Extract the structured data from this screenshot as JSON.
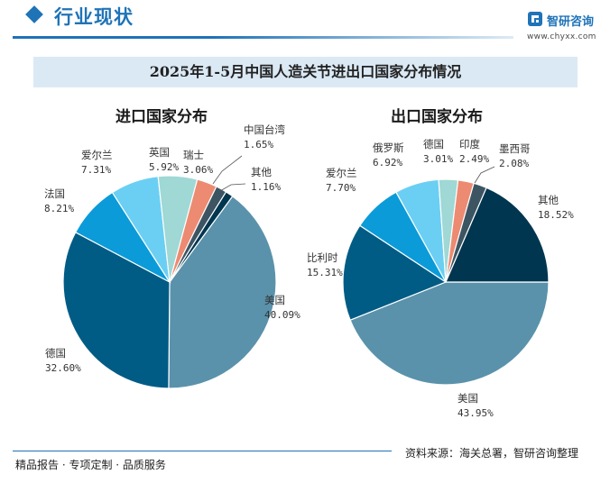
{
  "header": {
    "title": "行业现状",
    "brand_name": "智研咨询",
    "brand_url": "www.chyxx.com"
  },
  "chart_data": [
    {
      "type": "pie",
      "title": "2025年1-5月中国人造关节进出口国家分布情况",
      "subtitle": "进口国家分布",
      "unit": "%",
      "slices": [
        {
          "name": "美国",
          "label": "美国",
          "value": 40.09,
          "pct": "40.09%",
          "color": "#5a92ab"
        },
        {
          "name": "德国",
          "label": "德国",
          "value": 32.6,
          "pct": "32.60%",
          "color": "#005c85"
        },
        {
          "name": "法国",
          "label": "法国",
          "value": 8.21,
          "pct": "8.21%",
          "color": "#0b9bd8"
        },
        {
          "name": "爱尔兰",
          "label": "爱尔兰",
          "value": 7.31,
          "pct": "7.31%",
          "color": "#6bcff3"
        },
        {
          "name": "英国",
          "label": "英国",
          "value": 5.92,
          "pct": "5.92%",
          "color": "#9fd8d5"
        },
        {
          "name": "瑞士",
          "label": "瑞士",
          "value": 3.06,
          "pct": "3.06%",
          "color": "#ec8b72"
        },
        {
          "name": "中国台湾",
          "label": "中国台湾",
          "value": 1.65,
          "pct": "1.65%",
          "color": "#3d5563"
        },
        {
          "name": "其他",
          "label": "其他",
          "value": 1.16,
          "pct": "1.16%",
          "color": "#00364f"
        }
      ]
    },
    {
      "type": "pie",
      "subtitle": "出口国家分布",
      "unit": "%",
      "slices": [
        {
          "name": "美国",
          "label": "美国",
          "value": 43.95,
          "pct": "43.95%",
          "color": "#5a92ab"
        },
        {
          "name": "比利时",
          "label": "比利时",
          "value": 15.31,
          "pct": "15.31%",
          "color": "#005c85"
        },
        {
          "name": "爱尔兰",
          "label": "爱尔兰",
          "value": 7.7,
          "pct": "7.70%",
          "color": "#0b9bd8"
        },
        {
          "name": "俄罗斯",
          "label": "俄罗斯",
          "value": 6.92,
          "pct": "6.92%",
          "color": "#6bcff3"
        },
        {
          "name": "德国",
          "label": "德国",
          "value": 3.01,
          "pct": "3.01%",
          "color": "#9fd8d5"
        },
        {
          "name": "印度",
          "label": "印度",
          "value": 2.49,
          "pct": "2.49%",
          "color": "#ec8b72"
        },
        {
          "name": "墨西哥",
          "label": "墨西哥",
          "value": 2.08,
          "pct": "2.08%",
          "color": "#3d5563"
        },
        {
          "name": "其他",
          "label": "其他",
          "value": 18.52,
          "pct": "18.52%",
          "color": "#00364f"
        }
      ]
    }
  ],
  "footer": {
    "left": "精品报告 · 专项定制 · 品质服务",
    "source": "资料来源：海关总署，智研咨询整理"
  }
}
